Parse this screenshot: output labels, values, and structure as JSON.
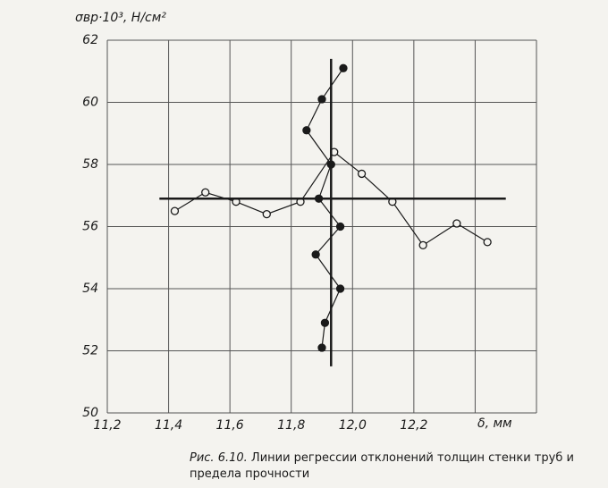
{
  "chart_data": {
    "type": "scatter-line",
    "y_label": "σвр·10³, Н/см²",
    "x_label": "δ, мм",
    "xlim": [
      11.2,
      12.6
    ],
    "ylim": [
      50,
      62
    ],
    "xticks": [
      {
        "value": 11.2,
        "label": "11,2"
      },
      {
        "value": 11.4,
        "label": "11,4"
      },
      {
        "value": 11.6,
        "label": "11,6"
      },
      {
        "value": 11.8,
        "label": "11,8"
      },
      {
        "value": 12.0,
        "label": "12,0"
      },
      {
        "value": 12.2,
        "label": "12,2"
      }
    ],
    "xgrid": [
      11.2,
      11.4,
      11.6,
      11.8,
      12.0,
      12.2,
      12.4,
      12.6
    ],
    "yticks": [
      50,
      52,
      54,
      56,
      58,
      60,
      62
    ],
    "grid": true,
    "series": [
      {
        "marker": "open",
        "color": "#1a1a1a",
        "x": [
          11.42,
          11.52,
          11.62,
          11.72,
          11.83,
          11.94,
          12.03,
          12.13,
          12.23,
          12.34,
          12.44
        ],
        "values": [
          56.5,
          57.1,
          56.8,
          56.4,
          56.8,
          58.4,
          57.7,
          56.8,
          55.4,
          56.1,
          55.5
        ]
      },
      {
        "marker": "filled",
        "color": "#1a1a1a",
        "x": [
          11.97,
          11.9,
          11.85,
          11.93,
          11.89,
          11.96,
          11.88,
          11.96,
          11.91,
          11.9
        ],
        "values": [
          61.1,
          60.1,
          59.1,
          58.0,
          56.9,
          56.0,
          55.1,
          54.0,
          52.9,
          52.1
        ]
      },
      {
        "marker": "none",
        "color": "#1a1a1a",
        "width": 2.5,
        "x": [
          11.37,
          12.5
        ],
        "values": [
          56.9,
          56.9
        ]
      },
      {
        "marker": "none",
        "color": "#1a1a1a",
        "width": 2.5,
        "x": [
          11.93,
          11.93
        ],
        "values": [
          51.5,
          61.4
        ]
      }
    ]
  },
  "caption": {
    "figure_number": "Рис. 6.10.",
    "text": "Линии регрессии отклонений толщин стенки труб и предела прочности"
  }
}
